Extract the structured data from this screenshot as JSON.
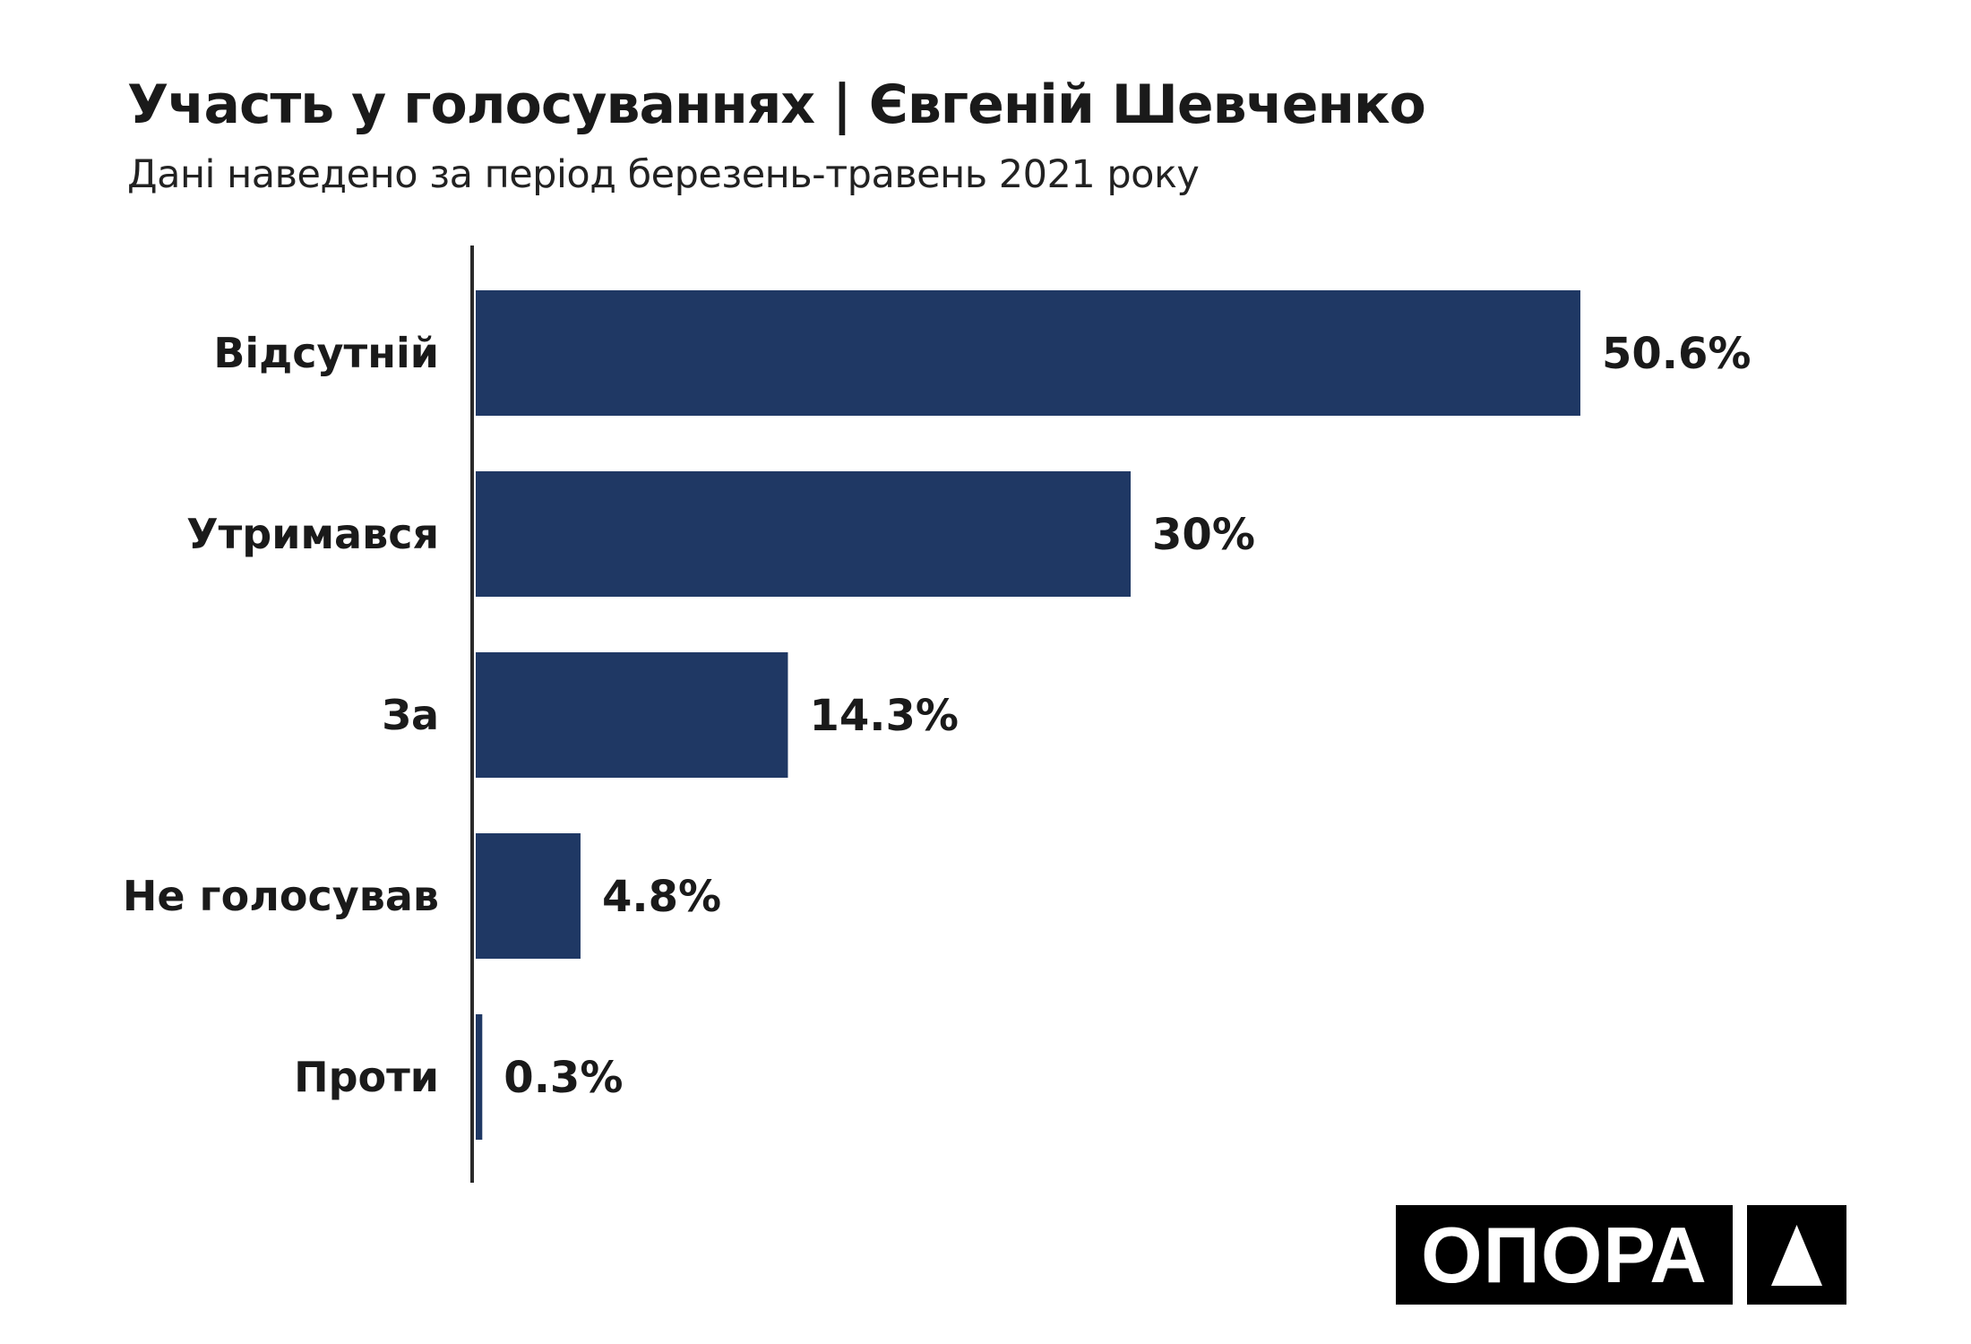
{
  "title": "Участь у голосуваннях | Євгеній Шевченко",
  "subtitle": "Дані наведено за період березень-травень 2021 року",
  "logo": "ОПОРА",
  "chart_data": {
    "type": "bar",
    "orientation": "horizontal",
    "title": "Участь у голосуваннях | Євгеній Шевченко",
    "subtitle": "Дані наведено за період березень-травень 2021 року",
    "categories": [
      "Відсутній",
      "Утримався",
      "За",
      "Не голосував",
      "Проти"
    ],
    "values": [
      50.6,
      30,
      14.3,
      4.8,
      0.3
    ],
    "labels": [
      "50.6%",
      "30%",
      "14.3%",
      "4.8%",
      "0.3%"
    ],
    "xlabel": "",
    "ylabel": "",
    "xlim": [
      0,
      50.6
    ],
    "grid": false,
    "color": "#1f3864"
  }
}
